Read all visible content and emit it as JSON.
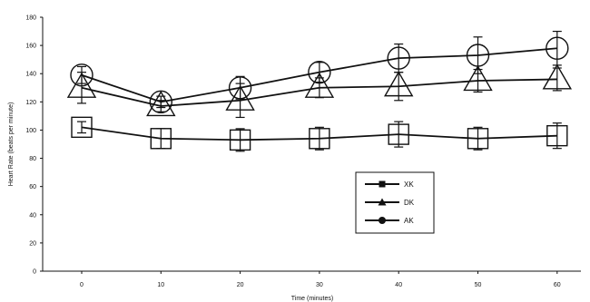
{
  "chart_data": {
    "type": "line",
    "title": "",
    "xlabel": "Time (minutes)",
    "ylabel": "Heart Rate (beats per minute)",
    "categories": [
      "0",
      "10",
      "20",
      "30",
      "40",
      "50",
      "60"
    ],
    "ylim": [
      0,
      180
    ],
    "yticks": [
      0,
      20,
      40,
      60,
      80,
      100,
      120,
      140,
      160,
      180
    ],
    "grid": false,
    "legend_position": "center-right",
    "series": [
      {
        "name": "XK",
        "marker": "square",
        "values": [
          102,
          94,
          93,
          94,
          97,
          94,
          96
        ],
        "error": [
          4,
          7,
          8,
          8,
          9,
          8,
          9
        ]
      },
      {
        "name": "DK",
        "marker": "triangle",
        "values": [
          130,
          117,
          121,
          130,
          131,
          135,
          136
        ],
        "error": [
          11,
          4,
          12,
          7,
          10,
          8,
          8
        ]
      },
      {
        "name": "AK",
        "marker": "circle",
        "values": [
          139,
          120,
          130,
          141,
          151,
          153,
          158
        ],
        "error": [
          6,
          4,
          8,
          7,
          10,
          13,
          12
        ]
      }
    ]
  },
  "colors": {
    "ink": "#111111",
    "background": "#ffffff"
  }
}
